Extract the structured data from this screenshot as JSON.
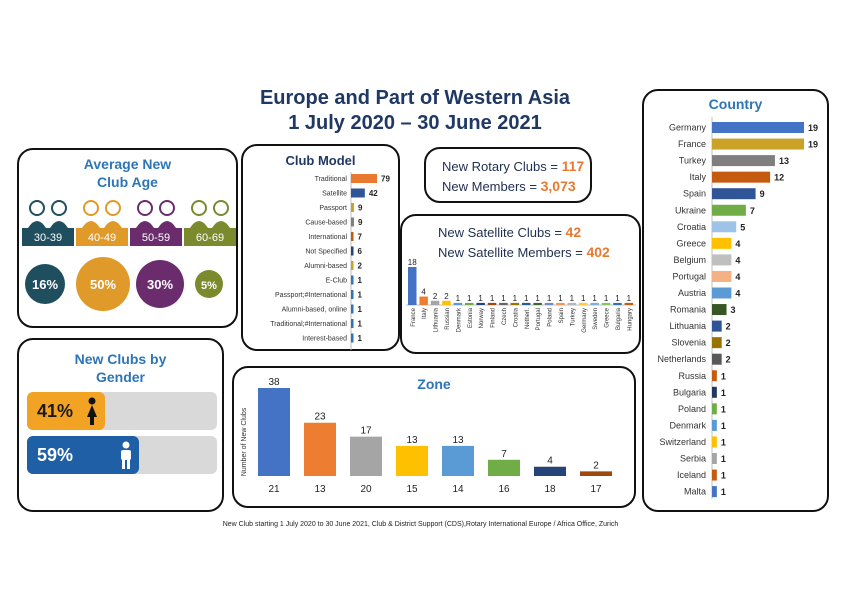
{
  "title_line1": "Europe and Part of Western Asia",
  "title_line2": "1 July 2020 – 30 June 2021",
  "footer": "New Club starting 1 July 2020 to 30 June 2021, Club & District Support (CDS),Rotary International Europe / Africa Office, Zurich",
  "age_panel": {
    "title_line1": "Average New",
    "title_line2": "Club Age",
    "colors": [
      "#1f4e5f",
      "#e09a2a",
      "#6b2c6e",
      "#7b8a2c"
    ],
    "groups": [
      {
        "label": "30-39",
        "pct": "16%"
      },
      {
        "label": "40-49",
        "pct": "50%"
      },
      {
        "label": "50-59",
        "pct": "30%"
      },
      {
        "label": "60-69",
        "pct": "5%"
      }
    ]
  },
  "gender_panel": {
    "title_line1": "New Clubs by",
    "title_line2": "Gender",
    "female": {
      "pct": "41%",
      "value": 0.41,
      "color": "#f2a324",
      "icon": "female-icon"
    },
    "male": {
      "pct": "59%",
      "value": 0.59,
      "color": "#1f5fa6",
      "icon": "male-icon"
    }
  },
  "stats": {
    "clubs_label": "New Rotary Clubs = ",
    "clubs_value": "117",
    "members_label": "New Members = ",
    "members_value": "3,073",
    "sat_clubs_label": "New Satellite Clubs = ",
    "sat_clubs_value": "42",
    "sat_members_label": "New Satellite Members = ",
    "sat_members_value": "402"
  },
  "chart_data": [
    {
      "id": "club_model",
      "type": "bar",
      "orientation": "horizontal",
      "title": "Club Model",
      "categories": [
        "Traditional",
        "Satellite",
        "Passport",
        "Cause-based",
        "International",
        "Not Specified",
        "Alumni-based",
        "E-Club",
        "Passport;#International",
        "Alumni-based, online",
        "Traditional;#International",
        "Interest-based"
      ],
      "values": [
        79,
        42,
        9,
        9,
        7,
        6,
        2,
        1,
        1,
        1,
        1,
        1
      ],
      "colors": [
        "#e8792f",
        "#2f5597",
        "#c9a227",
        "#7f7f7f",
        "#c55a11",
        "#264478",
        "#c9a227",
        "#2e75b6",
        "#2e75b6",
        "#2e75b6",
        "#2e75b6",
        "#2e75b6"
      ]
    },
    {
      "id": "satellite",
      "type": "bar",
      "title": "",
      "categories": [
        "France",
        "Italy",
        "Lithuania",
        "Russian",
        "Denmark",
        "Estonia",
        "Norway",
        "Finland",
        "Czech",
        "Croatia",
        "Netherl.",
        "Portugal",
        "Poland",
        "Spain",
        "Turkey",
        "Germany",
        "Sweden",
        "Greece",
        "Bulgaria",
        "Hungary"
      ],
      "values": [
        18,
        4,
        2,
        2,
        1,
        1,
        1,
        1,
        1,
        1,
        1,
        1,
        1,
        1,
        1,
        1,
        1,
        1,
        1,
        1
      ],
      "colors": [
        "#4472c4",
        "#ed7d31",
        "#a5a5a5",
        "#ffc000",
        "#5b9bd5",
        "#70ad47",
        "#264478",
        "#9e480e",
        "#636363",
        "#997300",
        "#255e91",
        "#43682b",
        "#698ed0",
        "#f1975a",
        "#b7b7b7",
        "#ffcd33",
        "#7cafdd",
        "#8cc168",
        "#2e75b6",
        "#c55a11"
      ]
    },
    {
      "id": "zone",
      "type": "bar",
      "title": "Zone",
      "ylabel": "Number of New Clubs",
      "categories": [
        "21",
        "13",
        "20",
        "15",
        "14",
        "16",
        "18",
        "17"
      ],
      "values": [
        38,
        23,
        17,
        13,
        13,
        7,
        4,
        2
      ],
      "colors": [
        "#4472c4",
        "#ed7d31",
        "#a5a5a5",
        "#ffc000",
        "#5b9bd5",
        "#70ad47",
        "#264478",
        "#9e480e"
      ]
    },
    {
      "id": "country",
      "type": "bar",
      "orientation": "horizontal",
      "title": "Country",
      "categories": [
        "Germany",
        "France",
        "Turkey",
        "Italy",
        "Spain",
        "Ukraine",
        "Croatia",
        "Greece",
        "Belgium",
        "Portugal",
        "Austria",
        "Romania",
        "Lithuania",
        "Slovenia",
        "Netherlands",
        "Russia",
        "Bulgaria",
        "Poland",
        "Denmark",
        "Switzerland",
        "Serbia",
        "Iceland",
        "Malta"
      ],
      "values": [
        19,
        19,
        13,
        12,
        9,
        7,
        5,
        4,
        4,
        4,
        4,
        3,
        2,
        2,
        2,
        1,
        1,
        1,
        1,
        1,
        1,
        1,
        1
      ],
      "colors": [
        "#4472c4",
        "#c9a227",
        "#7f7f7f",
        "#c55a11",
        "#2f5597",
        "#70ad47",
        "#9dc3e6",
        "#ffc000",
        "#bfbfbf",
        "#f4b183",
        "#5b9bd5",
        "#375623",
        "#2f5597",
        "#997300",
        "#595959",
        "#c55a11",
        "#1f3864",
        "#70ad47",
        "#5b9bd5",
        "#ffc000",
        "#a5a5a5",
        "#c55a11",
        "#4472c4"
      ]
    }
  ]
}
